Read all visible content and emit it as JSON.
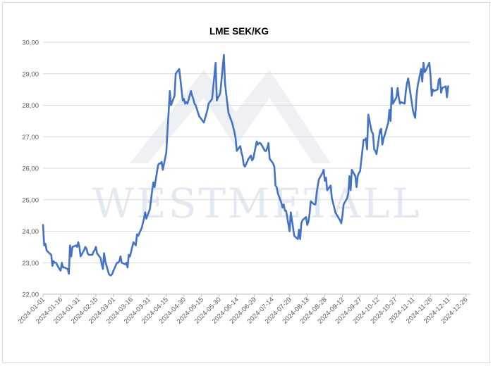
{
  "chart_data": {
    "type": "line",
    "title": "LME SEK/KG",
    "xlabel": "",
    "ylabel": "",
    "ylim": [
      22,
      30
    ],
    "y_ticks": [
      "22,00",
      "23,00",
      "24,00",
      "25,00",
      "26,00",
      "27,00",
      "28,00",
      "29,00",
      "30,00"
    ],
    "x_ticks": [
      "2024-01-01",
      "2024-01-16",
      "2024-01-31",
      "2024-02-15",
      "2024-03-01",
      "2024-03-16",
      "2024-03-31",
      "2024-04-15",
      "2024-04-30",
      "2024-05-15",
      "2024-05-30",
      "2024-06-14",
      "2024-06-29",
      "2024-07-14",
      "2024-07-29",
      "2024-08-13",
      "2024-08-28",
      "2024-09-12",
      "2024-09-27",
      "2024-10-12",
      "2024-10-27",
      "2024-11-11",
      "2024-11-26",
      "2024-12-11",
      "2024-12-26"
    ],
    "x_range": [
      "2024-01-01",
      "2024-12-30"
    ],
    "grid": "horizontal",
    "legend": "none",
    "line_color": "#4472c4",
    "watermark": "WESTMETALL",
    "series": [
      {
        "points": [
          [
            "2024-01-01",
            24.2
          ],
          [
            "2024-01-02",
            23.55
          ],
          [
            "2024-01-03",
            23.6
          ],
          [
            "2024-01-04",
            23.4
          ],
          [
            "2024-01-05",
            23.35
          ],
          [
            "2024-01-08",
            23.25
          ],
          [
            "2024-01-09",
            22.9
          ],
          [
            "2024-01-10",
            23.05
          ],
          [
            "2024-01-11",
            23.0
          ],
          [
            "2024-01-12",
            23.0
          ],
          [
            "2024-01-15",
            22.8
          ],
          [
            "2024-01-16",
            22.75
          ],
          [
            "2024-01-17",
            23.0
          ],
          [
            "2024-01-18",
            22.85
          ],
          [
            "2024-01-19",
            22.85
          ],
          [
            "2024-01-22",
            22.8
          ],
          [
            "2024-01-23",
            22.65
          ],
          [
            "2024-01-24",
            23.55
          ],
          [
            "2024-01-25",
            23.2
          ],
          [
            "2024-01-26",
            23.5
          ],
          [
            "2024-01-29",
            23.55
          ],
          [
            "2024-01-30",
            23.5
          ],
          [
            "2024-01-31",
            23.65
          ],
          [
            "2024-02-01",
            23.5
          ],
          [
            "2024-02-02",
            23.2
          ],
          [
            "2024-02-05",
            23.4
          ],
          [
            "2024-02-06",
            23.5
          ],
          [
            "2024-02-07",
            23.45
          ],
          [
            "2024-02-08",
            23.3
          ],
          [
            "2024-02-09",
            23.25
          ],
          [
            "2024-02-12",
            23.25
          ],
          [
            "2024-02-13",
            23.35
          ],
          [
            "2024-02-14",
            23.4
          ],
          [
            "2024-02-15",
            23.5
          ],
          [
            "2024-02-16",
            23.3
          ],
          [
            "2024-02-19",
            23.15
          ],
          [
            "2024-02-20",
            22.95
          ],
          [
            "2024-02-21",
            22.8
          ],
          [
            "2024-02-22",
            23.3
          ],
          [
            "2024-02-23",
            23.05
          ],
          [
            "2024-02-26",
            22.65
          ],
          [
            "2024-02-27",
            22.6
          ],
          [
            "2024-02-28",
            22.6
          ],
          [
            "2024-02-29",
            22.65
          ],
          [
            "2024-03-01",
            22.75
          ],
          [
            "2024-03-04",
            23.0
          ],
          [
            "2024-03-05",
            23.0
          ],
          [
            "2024-03-06",
            23.05
          ],
          [
            "2024-03-07",
            23.2
          ],
          [
            "2024-03-08",
            23.0
          ],
          [
            "2024-03-11",
            22.95
          ],
          [
            "2024-03-12",
            23.0
          ],
          [
            "2024-03-13",
            22.85
          ],
          [
            "2024-03-14",
            23.25
          ],
          [
            "2024-03-15",
            23.2
          ],
          [
            "2024-03-18",
            23.65
          ],
          [
            "2024-03-19",
            23.6
          ],
          [
            "2024-03-20",
            23.55
          ],
          [
            "2024-03-21",
            23.9
          ],
          [
            "2024-03-22",
            23.85
          ],
          [
            "2024-03-25",
            24.1
          ],
          [
            "2024-03-26",
            24.25
          ],
          [
            "2024-03-27",
            24.4
          ],
          [
            "2024-03-28",
            24.6
          ],
          [
            "2024-03-29",
            24.4
          ],
          [
            "2024-04-01",
            24.7
          ],
          [
            "2024-04-02",
            25.0
          ],
          [
            "2024-04-03",
            25.3
          ],
          [
            "2024-04-04",
            25.55
          ],
          [
            "2024-04-05",
            25.4
          ],
          [
            "2024-04-08",
            26.1
          ],
          [
            "2024-04-09",
            26.15
          ],
          [
            "2024-04-10",
            26.15
          ],
          [
            "2024-04-11",
            26.2
          ],
          [
            "2024-04-12",
            25.95
          ],
          [
            "2024-04-15",
            26.5
          ],
          [
            "2024-04-16",
            27.2
          ],
          [
            "2024-04-17",
            27.8
          ],
          [
            "2024-04-18",
            28.45
          ],
          [
            "2024-04-19",
            28.0
          ],
          [
            "2024-04-22",
            28.3
          ],
          [
            "2024-04-23",
            29.0
          ],
          [
            "2024-04-24",
            29.05
          ],
          [
            "2024-04-25",
            29.1
          ],
          [
            "2024-04-26",
            29.15
          ],
          [
            "2024-04-29",
            28.15
          ],
          [
            "2024-04-30",
            28.2
          ],
          [
            "2024-05-01",
            28.05
          ],
          [
            "2024-05-02",
            28.1
          ],
          [
            "2024-05-03",
            28.05
          ],
          [
            "2024-05-06",
            28.45
          ],
          [
            "2024-05-07",
            28.3
          ],
          [
            "2024-05-08",
            28.2
          ],
          [
            "2024-05-09",
            28.05
          ],
          [
            "2024-05-10",
            28.0
          ],
          [
            "2024-05-13",
            27.65
          ],
          [
            "2024-05-14",
            27.6
          ],
          [
            "2024-05-15",
            27.55
          ],
          [
            "2024-05-16",
            27.5
          ],
          [
            "2024-05-17",
            27.45
          ],
          [
            "2024-05-20",
            27.85
          ],
          [
            "2024-05-21",
            28.05
          ],
          [
            "2024-05-22",
            28.1
          ],
          [
            "2024-05-23",
            28.15
          ],
          [
            "2024-05-24",
            28.2
          ],
          [
            "2024-05-27",
            29.35
          ],
          [
            "2024-05-28",
            28.15
          ],
          [
            "2024-05-29",
            28.25
          ],
          [
            "2024-05-30",
            28.3
          ],
          [
            "2024-05-31",
            28.4
          ],
          [
            "2024-06-03",
            29.6
          ],
          [
            "2024-06-04",
            28.7
          ],
          [
            "2024-06-05",
            28.35
          ],
          [
            "2024-06-06",
            28.05
          ],
          [
            "2024-06-07",
            27.75
          ],
          [
            "2024-06-10",
            27.45
          ],
          [
            "2024-06-11",
            27.3
          ],
          [
            "2024-06-12",
            27.15
          ],
          [
            "2024-06-13",
            26.95
          ],
          [
            "2024-06-14",
            26.55
          ],
          [
            "2024-06-17",
            26.7
          ],
          [
            "2024-06-18",
            26.5
          ],
          [
            "2024-06-19",
            26.35
          ],
          [
            "2024-06-20",
            26.1
          ],
          [
            "2024-06-21",
            26.05
          ],
          [
            "2024-06-24",
            26.3
          ],
          [
            "2024-06-25",
            26.35
          ],
          [
            "2024-06-26",
            26.4
          ],
          [
            "2024-06-27",
            26.25
          ],
          [
            "2024-06-28",
            26.3
          ],
          [
            "2024-07-01",
            26.85
          ],
          [
            "2024-07-02",
            26.75
          ],
          [
            "2024-07-03",
            26.8
          ],
          [
            "2024-07-04",
            26.8
          ],
          [
            "2024-07-05",
            26.75
          ],
          [
            "2024-07-08",
            26.55
          ],
          [
            "2024-07-09",
            26.55
          ],
          [
            "2024-07-10",
            26.65
          ],
          [
            "2024-07-11",
            26.8
          ],
          [
            "2024-07-12",
            26.3
          ],
          [
            "2024-07-15",
            26.15
          ],
          [
            "2024-07-16",
            26.05
          ],
          [
            "2024-07-17",
            25.45
          ],
          [
            "2024-07-18",
            25.4
          ],
          [
            "2024-07-19",
            25.2
          ],
          [
            "2024-07-22",
            24.9
          ],
          [
            "2024-07-23",
            24.75
          ],
          [
            "2024-07-24",
            24.85
          ],
          [
            "2024-07-25",
            24.65
          ],
          [
            "2024-07-26",
            24.65
          ],
          [
            "2024-07-29",
            24.0
          ],
          [
            "2024-07-30",
            24.6
          ],
          [
            "2024-07-31",
            24.35
          ],
          [
            "2024-08-01",
            24.1
          ],
          [
            "2024-08-02",
            23.85
          ],
          [
            "2024-08-05",
            23.75
          ],
          [
            "2024-08-06",
            24.05
          ],
          [
            "2024-08-07",
            23.75
          ],
          [
            "2024-08-08",
            24.25
          ],
          [
            "2024-08-09",
            24.35
          ],
          [
            "2024-08-12",
            24.45
          ],
          [
            "2024-08-13",
            24.2
          ],
          [
            "2024-08-14",
            24.3
          ],
          [
            "2024-08-15",
            24.55
          ],
          [
            "2024-08-16",
            24.95
          ],
          [
            "2024-08-19",
            24.85
          ],
          [
            "2024-08-20",
            24.85
          ],
          [
            "2024-08-21",
            25.2
          ],
          [
            "2024-08-22",
            25.45
          ],
          [
            "2024-08-23",
            25.65
          ],
          [
            "2024-08-26",
            25.85
          ],
          [
            "2024-08-27",
            25.95
          ],
          [
            "2024-08-28",
            25.6
          ],
          [
            "2024-08-29",
            25.7
          ],
          [
            "2024-08-30",
            25.3
          ],
          [
            "2024-09-02",
            25.45
          ],
          [
            "2024-09-03",
            25.05
          ],
          [
            "2024-09-04",
            24.9
          ],
          [
            "2024-09-05",
            24.75
          ],
          [
            "2024-09-06",
            24.6
          ],
          [
            "2024-09-09",
            24.4
          ],
          [
            "2024-09-10",
            24.35
          ],
          [
            "2024-09-11",
            24.25
          ],
          [
            "2024-09-12",
            24.5
          ],
          [
            "2024-09-13",
            24.85
          ],
          [
            "2024-09-16",
            25.05
          ],
          [
            "2024-09-17",
            25.2
          ],
          [
            "2024-09-18",
            25.75
          ],
          [
            "2024-09-19",
            25.3
          ],
          [
            "2024-09-20",
            25.95
          ],
          [
            "2024-09-23",
            25.75
          ],
          [
            "2024-09-24",
            25.4
          ],
          [
            "2024-09-25",
            25.75
          ],
          [
            "2024-09-26",
            25.85
          ],
          [
            "2024-09-27",
            25.9
          ],
          [
            "2024-09-30",
            26.9
          ],
          [
            "2024-10-01",
            26.9
          ],
          [
            "2024-10-02",
            26.95
          ],
          [
            "2024-10-03",
            26.6
          ],
          [
            "2024-10-04",
            27.7
          ],
          [
            "2024-10-07",
            27.15
          ],
          [
            "2024-10-08",
            27.1
          ],
          [
            "2024-10-09",
            26.6
          ],
          [
            "2024-10-10",
            26.55
          ],
          [
            "2024-10-11",
            26.45
          ],
          [
            "2024-10-14",
            27.2
          ],
          [
            "2024-10-15",
            27.25
          ],
          [
            "2024-10-16",
            26.75
          ],
          [
            "2024-10-17",
            26.95
          ],
          [
            "2024-10-18",
            27.05
          ],
          [
            "2024-10-21",
            27.45
          ],
          [
            "2024-10-22",
            27.85
          ],
          [
            "2024-10-23",
            27.5
          ],
          [
            "2024-10-24",
            28.55
          ],
          [
            "2024-10-25",
            28.05
          ],
          [
            "2024-10-28",
            28.25
          ],
          [
            "2024-10-29",
            28.55
          ],
          [
            "2024-10-30",
            28.25
          ],
          [
            "2024-10-31",
            28.05
          ],
          [
            "2024-11-01",
            28.1
          ],
          [
            "2024-11-04",
            28.05
          ],
          [
            "2024-11-05",
            28.45
          ],
          [
            "2024-11-06",
            28.7
          ],
          [
            "2024-11-07",
            28.85
          ],
          [
            "2024-11-08",
            28.6
          ],
          [
            "2024-11-11",
            27.85
          ],
          [
            "2024-11-12",
            27.7
          ],
          [
            "2024-11-13",
            27.6
          ],
          [
            "2024-11-14",
            28.25
          ],
          [
            "2024-11-15",
            28.6
          ],
          [
            "2024-11-18",
            29.15
          ],
          [
            "2024-11-19",
            28.75
          ],
          [
            "2024-11-20",
            29.35
          ],
          [
            "2024-11-21",
            29.05
          ],
          [
            "2024-11-22",
            29.1
          ],
          [
            "2024-11-25",
            29.35
          ],
          [
            "2024-11-26",
            28.95
          ],
          [
            "2024-11-27",
            28.3
          ],
          [
            "2024-11-28",
            28.5
          ],
          [
            "2024-11-29",
            28.45
          ],
          [
            "2024-12-02",
            28.5
          ],
          [
            "2024-12-03",
            28.8
          ],
          [
            "2024-12-04",
            28.85
          ],
          [
            "2024-12-05",
            28.4
          ],
          [
            "2024-12-06",
            28.55
          ],
          [
            "2024-12-09",
            28.6
          ],
          [
            "2024-12-10",
            28.25
          ],
          [
            "2024-12-11",
            28.6
          ]
        ]
      }
    ]
  }
}
